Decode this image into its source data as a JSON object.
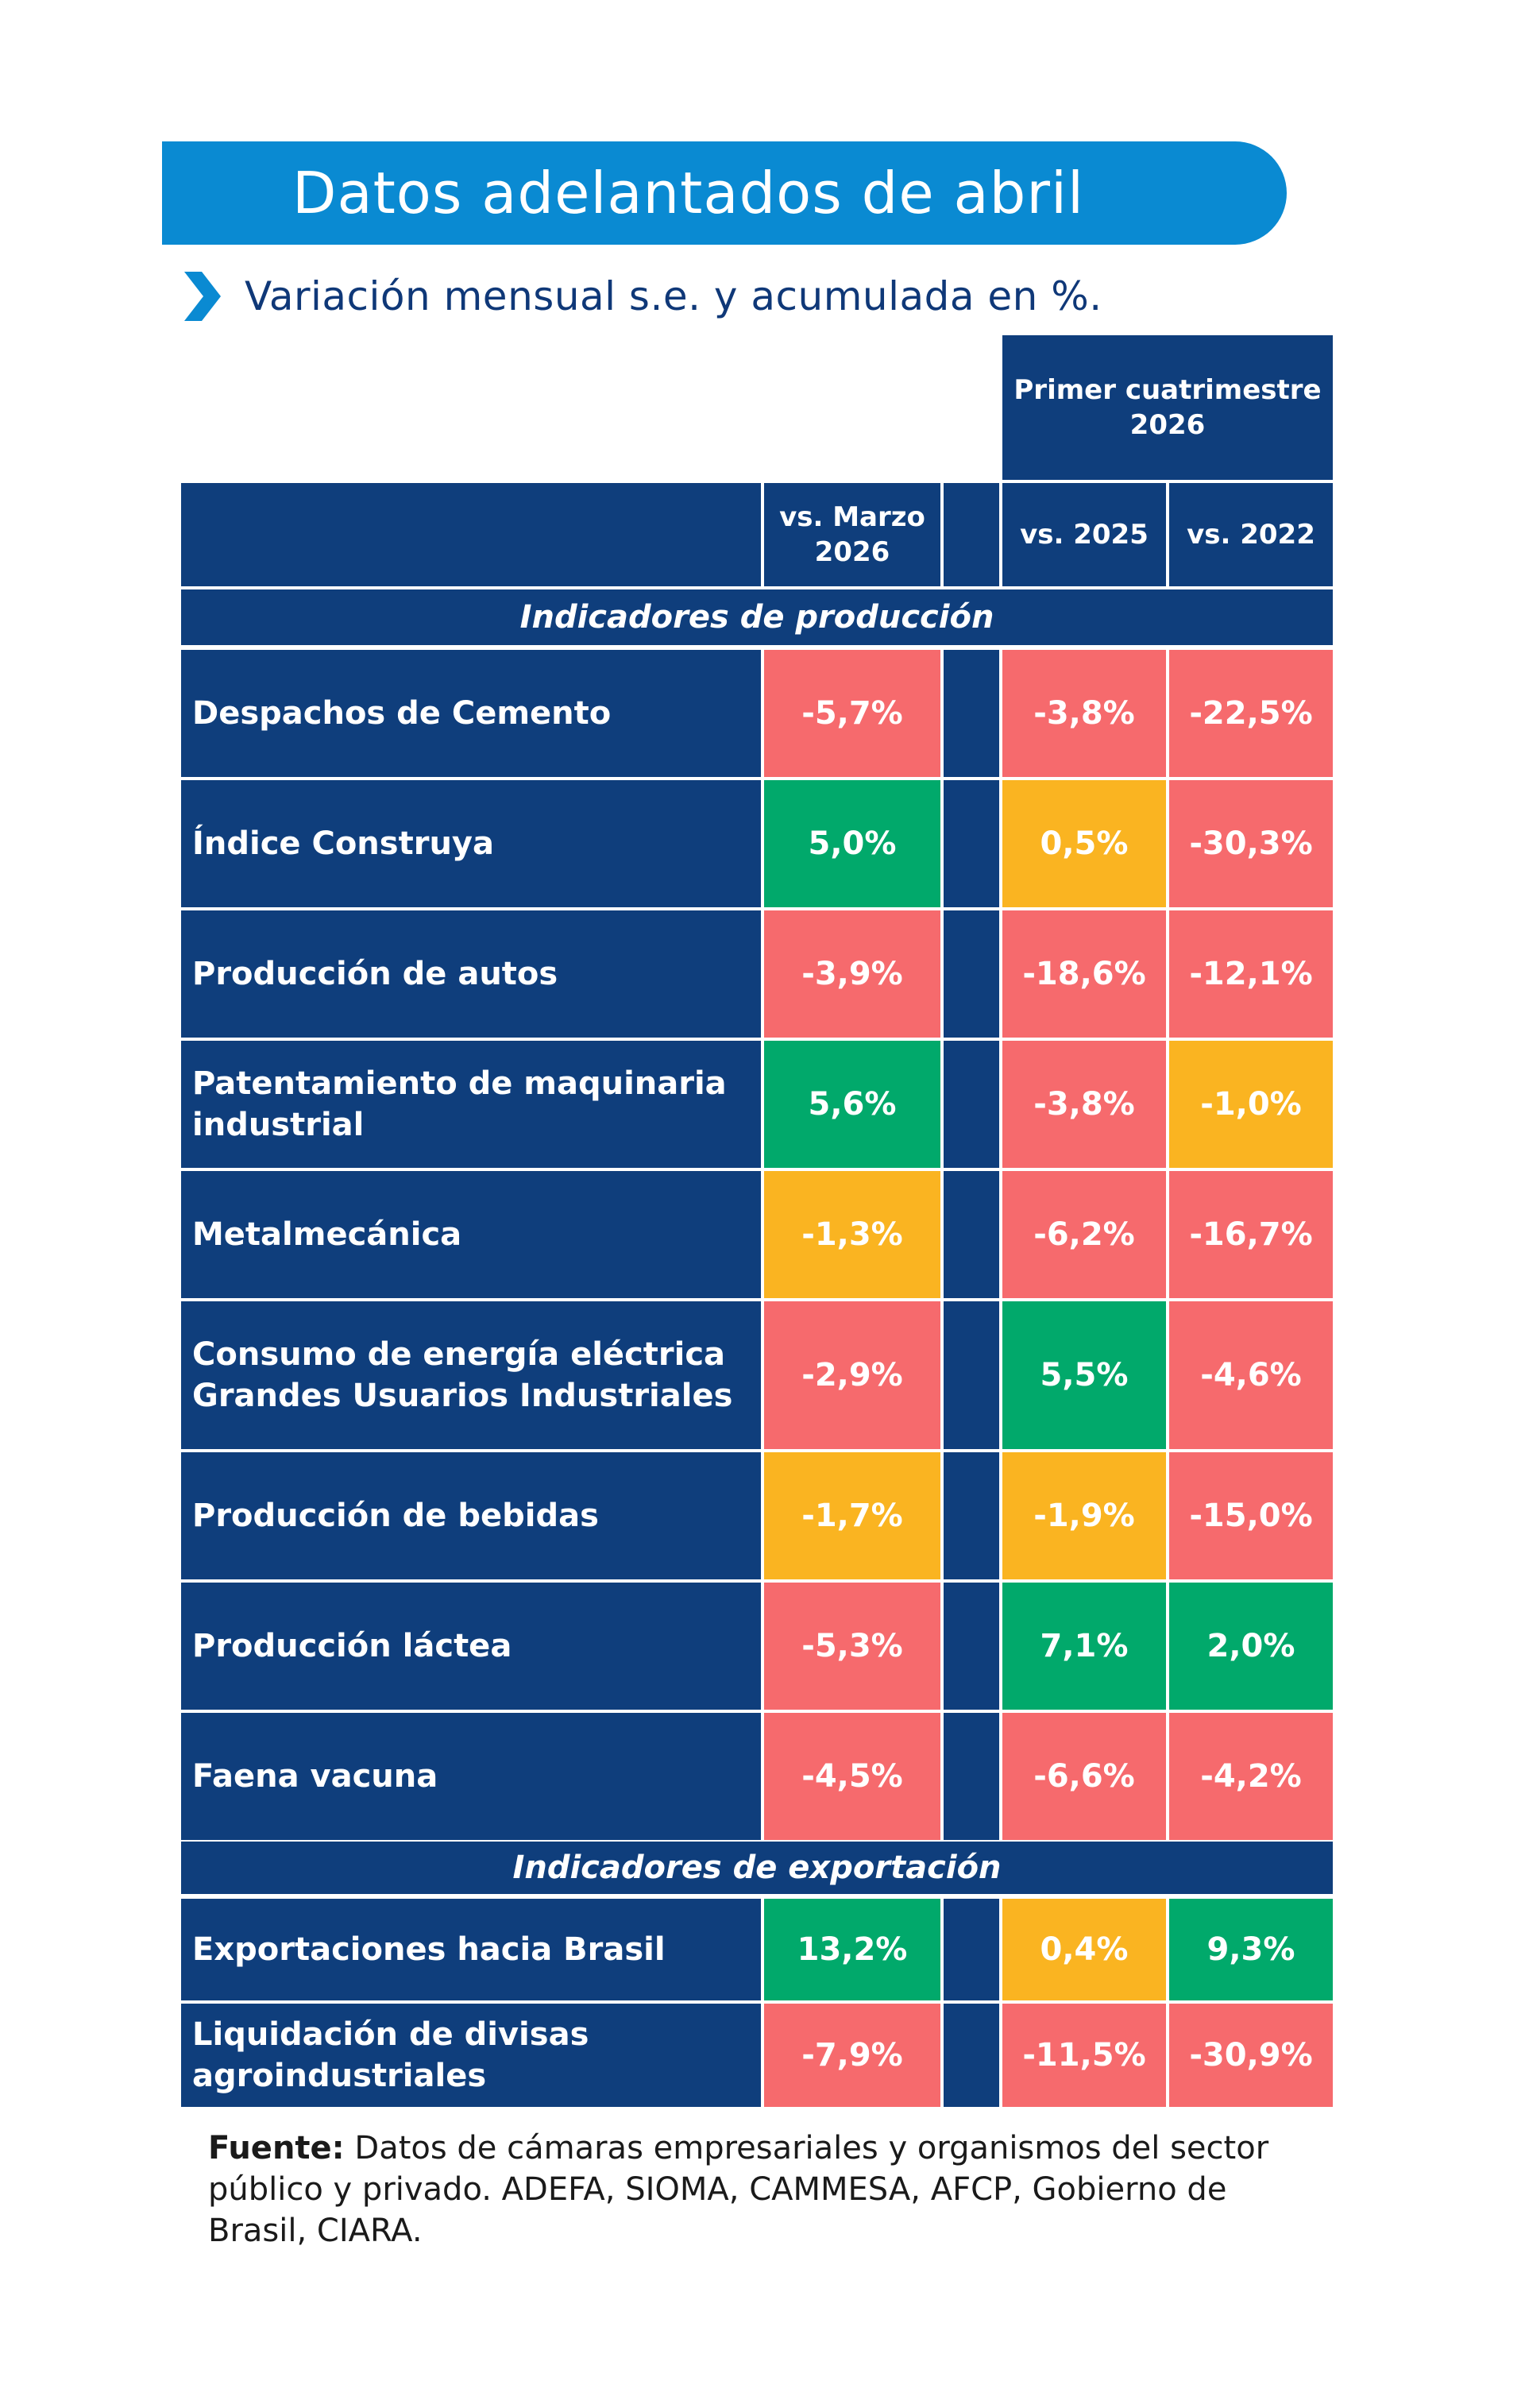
{
  "title": "Datos adelantados de abril",
  "subtitle": "Variación mensual s.e. y acumulada en %.",
  "colors": {
    "banner": "#0a8ad2",
    "navy": "#0f3e7c",
    "red": "#f66a6d",
    "green": "#01a96b",
    "yellow": "#fab421"
  },
  "chart_data": {
    "type": "table",
    "group_header": "Primer cuatrimestre 2026",
    "columns": [
      "vs. Marzo 2026",
      "vs. 2025",
      "vs. 2022"
    ],
    "sections": [
      {
        "name": "Indicadores de producción",
        "rows": [
          {
            "label": "Despachos de Cemento",
            "values": [
              "-5,7%",
              "-3,8%",
              "-22,5%"
            ],
            "status": [
              "red",
              "red",
              "red"
            ]
          },
          {
            "label": "Índice Construya",
            "values": [
              "5,0%",
              "0,5%",
              "-30,3%"
            ],
            "status": [
              "green",
              "yellow",
              "red"
            ]
          },
          {
            "label": "Producción de autos",
            "values": [
              "-3,9%",
              "-18,6%",
              "-12,1%"
            ],
            "status": [
              "red",
              "red",
              "red"
            ]
          },
          {
            "label": "Patentamiento de maquinaria industrial",
            "values": [
              "5,6%",
              "-3,8%",
              "-1,0%"
            ],
            "status": [
              "green",
              "red",
              "yellow"
            ]
          },
          {
            "label": "Metalmecánica",
            "values": [
              "-1,3%",
              "-6,2%",
              "-16,7%"
            ],
            "status": [
              "yellow",
              "red",
              "red"
            ]
          },
          {
            "label": "Consumo de energía eléctrica Grandes Usuarios Industriales",
            "values": [
              "-2,9%",
              "5,5%",
              "-4,6%"
            ],
            "status": [
              "red",
              "green",
              "red"
            ]
          },
          {
            "label": "Producción de bebidas",
            "values": [
              "-1,7%",
              "-1,9%",
              "-15,0%"
            ],
            "status": [
              "yellow",
              "yellow",
              "red"
            ]
          },
          {
            "label": "Producción láctea",
            "values": [
              "-5,3%",
              "7,1%",
              "2,0%"
            ],
            "status": [
              "red",
              "green",
              "green"
            ]
          },
          {
            "label": "Faena vacuna",
            "values": [
              "-4,5%",
              "-6,6%",
              "-4,2%"
            ],
            "status": [
              "red",
              "red",
              "red"
            ]
          }
        ]
      },
      {
        "name": "Indicadores de exportación",
        "rows": [
          {
            "label": "Exportaciones hacia Brasil",
            "values": [
              "13,2%",
              "0,4%",
              "9,3%"
            ],
            "status": [
              "green",
              "yellow",
              "green"
            ]
          },
          {
            "label": "Liquidación de divisas agroindustriales",
            "values": [
              "-7,9%",
              "-11,5%",
              "-30,9%"
            ],
            "status": [
              "red",
              "red",
              "red"
            ]
          }
        ]
      }
    ]
  },
  "source": {
    "label": "Fuente:",
    "text": "Datos de cámaras empresariales y organismos del sector público y privado. ADEFA, SIOMA, CAMMESA, AFCP, Gobierno de Brasil, CIARA."
  }
}
